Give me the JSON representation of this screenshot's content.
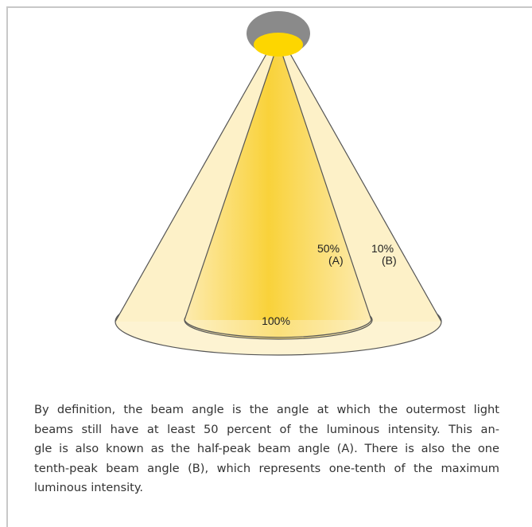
{
  "labels": {
    "half_peak_percent": "50%",
    "half_peak_letter": "(A)",
    "tenth_peak_percent": "10%",
    "tenth_peak_letter": "(B)",
    "center_percent": "100%"
  },
  "paragraph": {
    "lines": [
      "By definition, the beam angle is the angle at which the outermost light",
      "beams still have at least 50 percent of the luminous intensity. This an-",
      "gle is also known as the half-peak beam angle (A). There is also the one",
      "tenth-peak beam angle (B), which represents one-tenth of the maximum",
      "luminous intensity."
    ]
  }
}
